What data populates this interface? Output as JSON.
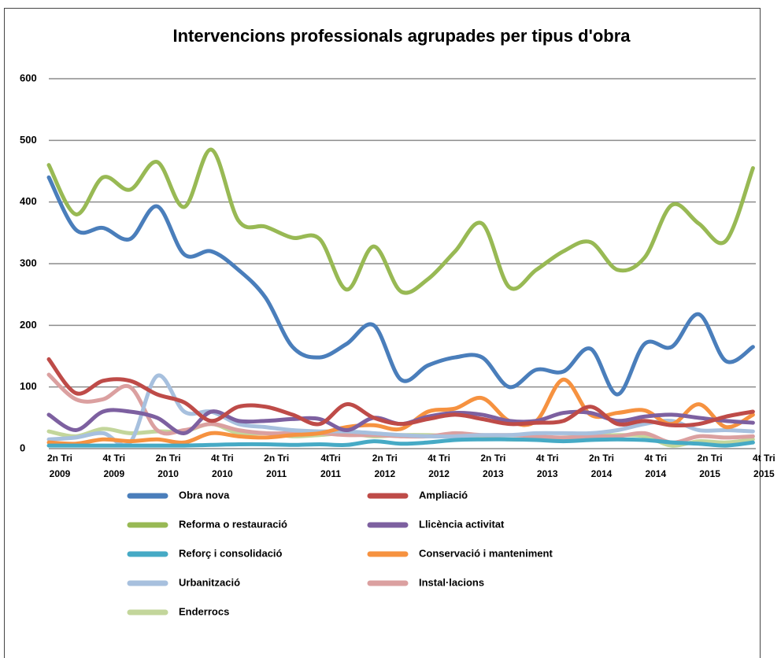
{
  "chart_data": {
    "type": "line",
    "title": "Intervencions professionals agrupades per tipus d'obra",
    "categories": [
      "2n Tri 2009",
      null,
      "4t Tri 2009",
      null,
      "2n Tri 2010",
      null,
      "4t Tri 2010",
      null,
      "2n Tri 2011",
      null,
      "4tTri 2011",
      null,
      "2n Tri 2012",
      null,
      "4t Tri 2012",
      null,
      "2n Tri 2013",
      null,
      "4t Tri 2013",
      null,
      "2n Tri 2014",
      null,
      "4t Tri 2014",
      null,
      "2n Tri 2015",
      null,
      "4t Tri 2015"
    ],
    "ylim": [
      0,
      600
    ],
    "yticks": [
      0,
      100,
      200,
      300,
      400,
      500,
      600
    ],
    "grid": true,
    "series": [
      {
        "name": "Obra nova",
        "color": "#4a7ebb",
        "values": [
          440,
          355,
          358,
          340,
          393,
          315,
          320,
          290,
          245,
          165,
          148,
          170,
          200,
          112,
          135,
          148,
          148,
          100,
          128,
          125,
          162,
          88,
          170,
          165,
          218,
          142,
          165
        ]
      },
      {
        "name": "Ampliació",
        "color": "#be4b48",
        "values": [
          145,
          90,
          110,
          110,
          88,
          75,
          45,
          68,
          68,
          55,
          40,
          72,
          50,
          40,
          48,
          55,
          48,
          40,
          42,
          45,
          68,
          40,
          45,
          38,
          40,
          52,
          60
        ]
      },
      {
        "name": "Reforma o restauració",
        "color": "#98b954",
        "values": [
          460,
          380,
          440,
          420,
          465,
          392,
          485,
          370,
          360,
          342,
          340,
          258,
          328,
          255,
          275,
          320,
          365,
          262,
          290,
          320,
          335,
          290,
          310,
          395,
          365,
          337,
          455
        ]
      },
      {
        "name": "Llicència activitat",
        "color": "#7d60a0",
        "values": [
          55,
          30,
          60,
          60,
          50,
          25,
          60,
          45,
          45,
          48,
          48,
          30,
          50,
          40,
          52,
          58,
          55,
          45,
          45,
          58,
          58,
          45,
          52,
          55,
          50,
          45,
          42
        ]
      },
      {
        "name": "Reforç i consolidació",
        "color": "#46aac5",
        "values": [
          5,
          5,
          5,
          5,
          5,
          5,
          6,
          7,
          7,
          6,
          7,
          6,
          12,
          8,
          10,
          14,
          15,
          15,
          14,
          12,
          14,
          15,
          14,
          10,
          8,
          5,
          10
        ]
      },
      {
        "name": "Conservació i manteniment",
        "color": "#f69240",
        "values": [
          10,
          8,
          15,
          12,
          15,
          10,
          25,
          20,
          18,
          22,
          25,
          35,
          38,
          32,
          60,
          65,
          82,
          45,
          45,
          112,
          55,
          58,
          62,
          40,
          72,
          35,
          55
        ]
      },
      {
        "name": "Urbanització",
        "color": "#a7c0de",
        "values": [
          15,
          18,
          25,
          10,
          118,
          60,
          60,
          40,
          35,
          30,
          28,
          28,
          25,
          22,
          20,
          20,
          22,
          22,
          25,
          25,
          25,
          30,
          40,
          45,
          30,
          30,
          28
        ]
      },
      {
        "name": "Instal·lacions",
        "color": "#dba0a0",
        "values": [
          120,
          80,
          80,
          100,
          30,
          30,
          40,
          30,
          25,
          25,
          25,
          22,
          22,
          20,
          20,
          25,
          22,
          22,
          20,
          18,
          20,
          20,
          25,
          10,
          20,
          18,
          20
        ]
      },
      {
        "name": "Enderrocs",
        "color": "#c3d69b",
        "values": [
          28,
          20,
          32,
          25,
          28,
          28,
          40,
          25,
          25,
          20,
          22,
          25,
          20,
          22,
          22,
          20,
          18,
          15,
          15,
          18,
          20,
          22,
          20,
          5,
          12,
          10,
          15
        ]
      }
    ]
  }
}
